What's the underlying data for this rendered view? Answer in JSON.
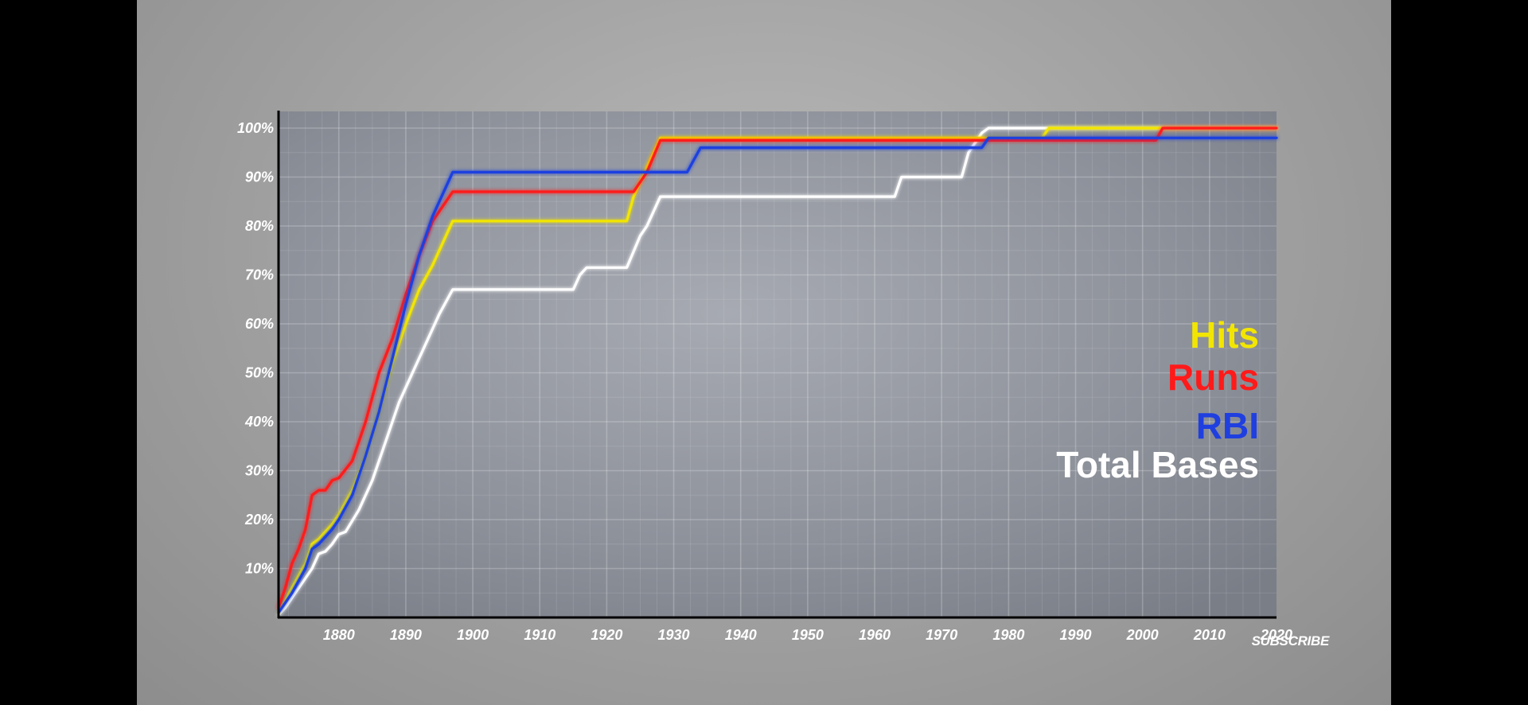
{
  "subscribe_label": "SUBSCRIBE",
  "chart_data": {
    "type": "line",
    "title": "",
    "xlabel": "",
    "ylabel": "",
    "xlim": [
      1871,
      2020
    ],
    "ylim": [
      0,
      100
    ],
    "x_ticks": [
      "1880",
      "1890",
      "1900",
      "1910",
      "1920",
      "1930",
      "1940",
      "1950",
      "1960",
      "1970",
      "1980",
      "1990",
      "2000",
      "2010",
      "2020"
    ],
    "x_tick_values": [
      1880,
      1890,
      1900,
      1910,
      1920,
      1930,
      1940,
      1950,
      1960,
      1970,
      1980,
      1990,
      2000,
      2010,
      2020
    ],
    "y_ticks": [
      "10%",
      "20%",
      "30%",
      "40%",
      "50%",
      "60%",
      "70%",
      "80%",
      "90%",
      "100%"
    ],
    "y_tick_values": [
      10,
      20,
      30,
      40,
      50,
      60,
      70,
      80,
      90,
      100
    ],
    "grid": true,
    "legend_position": "right",
    "series": [
      {
        "name": "Total Bases",
        "color": "#ffffff",
        "points": [
          [
            1871,
            0.5
          ],
          [
            1872,
            2
          ],
          [
            1874,
            6
          ],
          [
            1876,
            10
          ],
          [
            1877,
            13
          ],
          [
            1878,
            13.5
          ],
          [
            1879,
            15
          ],
          [
            1880,
            17
          ],
          [
            1881,
            17.5
          ],
          [
            1883,
            22
          ],
          [
            1885,
            28
          ],
          [
            1887,
            36
          ],
          [
            1889,
            44
          ],
          [
            1891,
            50
          ],
          [
            1893,
            56
          ],
          [
            1895,
            62
          ],
          [
            1897,
            67
          ],
          [
            1915,
            67
          ],
          [
            1916,
            70
          ],
          [
            1917,
            71.5
          ],
          [
            1923,
            71.5
          ],
          [
            1925,
            78
          ],
          [
            1926,
            80
          ],
          [
            1928,
            86
          ],
          [
            1963,
            86
          ],
          [
            1964,
            90
          ],
          [
            1973,
            90
          ],
          [
            1974,
            95
          ],
          [
            1976,
            99
          ],
          [
            1977,
            100
          ],
          [
            2020,
            100
          ]
        ]
      },
      {
        "name": "Hits",
        "color": "#f2e600",
        "points": [
          [
            1871,
            1
          ],
          [
            1873,
            6
          ],
          [
            1875,
            11
          ],
          [
            1876,
            15
          ],
          [
            1877,
            16
          ],
          [
            1879,
            19
          ],
          [
            1880,
            21
          ],
          [
            1882,
            26
          ],
          [
            1884,
            33
          ],
          [
            1886,
            42
          ],
          [
            1888,
            52
          ],
          [
            1890,
            60
          ],
          [
            1892,
            67
          ],
          [
            1894,
            72
          ],
          [
            1897,
            81
          ],
          [
            1923,
            81
          ],
          [
            1924,
            86
          ],
          [
            1926,
            92
          ],
          [
            1928,
            98
          ],
          [
            1985,
            98
          ],
          [
            1986,
            100
          ],
          [
            2020,
            100
          ]
        ]
      },
      {
        "name": "Runs",
        "color": "#ff1a1a",
        "points": [
          [
            1871,
            2
          ],
          [
            1872,
            6
          ],
          [
            1873,
            11
          ],
          [
            1874,
            14
          ],
          [
            1875,
            18
          ],
          [
            1876,
            25
          ],
          [
            1877,
            26
          ],
          [
            1878,
            26
          ],
          [
            1879,
            28
          ],
          [
            1880,
            28.5
          ],
          [
            1882,
            32
          ],
          [
            1884,
            40
          ],
          [
            1886,
            50
          ],
          [
            1888,
            57
          ],
          [
            1890,
            66
          ],
          [
            1892,
            74
          ],
          [
            1894,
            81
          ],
          [
            1897,
            87
          ],
          [
            1924,
            87
          ],
          [
            1926,
            91
          ],
          [
            1928,
            97.5
          ],
          [
            2002,
            97.5
          ],
          [
            2003,
            100
          ],
          [
            2020,
            100
          ]
        ]
      },
      {
        "name": "RBI",
        "color": "#1f3fe0",
        "points": [
          [
            1871,
            1
          ],
          [
            1873,
            5
          ],
          [
            1875,
            10
          ],
          [
            1876,
            14
          ],
          [
            1877,
            15
          ],
          [
            1879,
            18
          ],
          [
            1880,
            20
          ],
          [
            1882,
            25
          ],
          [
            1884,
            33
          ],
          [
            1886,
            42
          ],
          [
            1888,
            53
          ],
          [
            1890,
            64
          ],
          [
            1892,
            74
          ],
          [
            1894,
            82
          ],
          [
            1897,
            91
          ],
          [
            1932,
            91
          ],
          [
            1934,
            96
          ],
          [
            1976,
            96
          ],
          [
            1977,
            98
          ],
          [
            2020,
            98
          ]
        ]
      }
    ]
  }
}
